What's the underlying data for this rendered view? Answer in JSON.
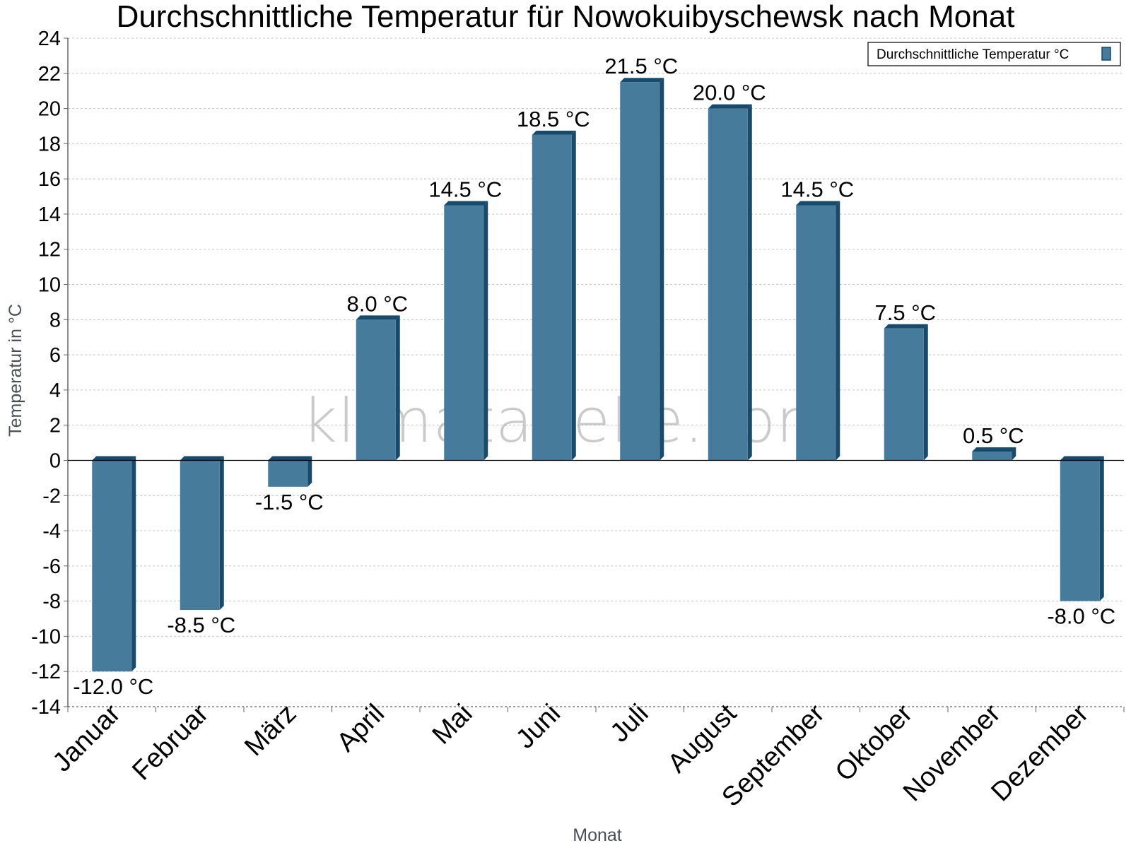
{
  "chart_data": {
    "type": "bar",
    "title": "Durchschnittliche Temperatur für Nowokuibyschewsk nach Monat",
    "xlabel": "Monat",
    "ylabel": "Temperatur in °C",
    "ylim": [
      -14,
      24
    ],
    "ytick_step": 2,
    "grid": true,
    "legend_position": "top-right",
    "unit": "°C",
    "watermark": "klimatabelle.com",
    "categories": [
      "Januar",
      "Februar",
      "März",
      "April",
      "Mai",
      "Juni",
      "Juli",
      "August",
      "September",
      "Oktober",
      "November",
      "Dezember"
    ],
    "series": [
      {
        "name": "Durchschnittliche Temperatur °C",
        "color": "#467b9c",
        "values": [
          -12.0,
          -8.5,
          -1.5,
          8.0,
          14.5,
          18.5,
          21.5,
          20.0,
          14.5,
          7.5,
          0.5,
          -8.0
        ]
      }
    ]
  },
  "colors": {
    "bar_front": "#467b9c",
    "bar_side": "#174a6b",
    "grid": "#c4c4c4",
    "axis": "#666666"
  }
}
